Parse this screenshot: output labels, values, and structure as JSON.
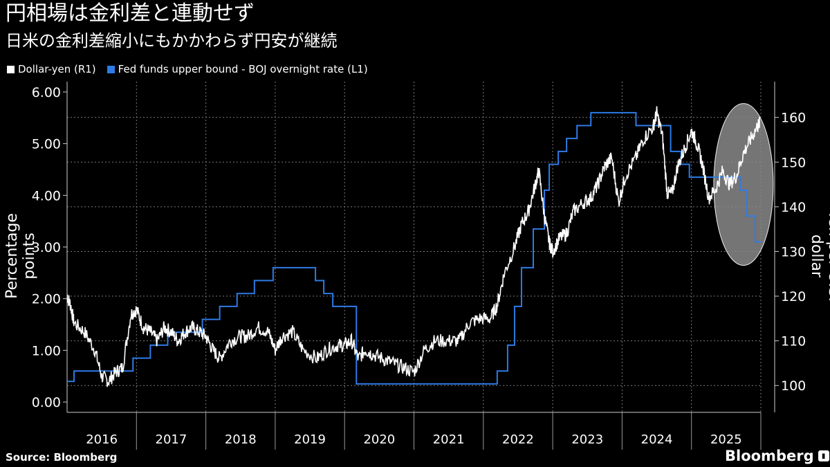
{
  "header": {
    "title": "円相場は金利差と連動せず",
    "subtitle": "日米の金利差縮小にもかかわらず円安が継続"
  },
  "legend": {
    "dollar_yen": "Dollar-yen (R1)",
    "fed_boj": "Fed funds upper bound - BOJ overnight rate (L1)"
  },
  "colors": {
    "dollar_yen": "#ffffff",
    "fed_boj": "#2e7be6",
    "grid": "#7a7a7a",
    "highlight": "#8a8a8a"
  },
  "footer": {
    "source": "Source:  Bloomberg",
    "brand": "Bloomberg"
  },
  "chart_data": {
    "type": "line",
    "x_range": [
      2016.0,
      2026.0
    ],
    "x_ticks": [
      "2016",
      "2017",
      "2018",
      "2019",
      "2020",
      "2021",
      "2022",
      "2023",
      "2024",
      "2025"
    ],
    "left_axis": {
      "label": "Percentage points",
      "range": [
        -0.2,
        6.2
      ],
      "ticks": [
        "0.00",
        "1.00",
        "2.00",
        "3.00",
        "4.00",
        "5.00",
        "6.00"
      ],
      "tick_values": [
        0,
        1,
        2,
        3,
        4,
        5,
        6
      ]
    },
    "right_axis": {
      "label": "Yen per U.S. dollar",
      "range": [
        94,
        168
      ],
      "ticks": [
        "100",
        "110",
        "120",
        "130",
        "140",
        "150",
        "160"
      ],
      "tick_values": [
        100,
        110,
        120,
        130,
        140,
        150,
        160
      ]
    },
    "series": [
      {
        "name": "Fed funds upper bound - BOJ overnight rate (L1)",
        "axis": "left",
        "step": true,
        "points": [
          [
            2016.0,
            0.4
          ],
          [
            2016.1,
            0.6
          ],
          [
            2016.95,
            0.85
          ],
          [
            2017.2,
            1.1
          ],
          [
            2017.45,
            1.35
          ],
          [
            2017.95,
            1.6
          ],
          [
            2018.2,
            1.85
          ],
          [
            2018.45,
            2.1
          ],
          [
            2018.7,
            2.35
          ],
          [
            2018.97,
            2.6
          ],
          [
            2019.58,
            2.35
          ],
          [
            2019.7,
            2.1
          ],
          [
            2019.83,
            1.85
          ],
          [
            2020.17,
            0.35
          ],
          [
            2022.2,
            0.6
          ],
          [
            2022.35,
            1.1
          ],
          [
            2022.45,
            1.85
          ],
          [
            2022.55,
            2.6
          ],
          [
            2022.72,
            3.35
          ],
          [
            2022.88,
            4.1
          ],
          [
            2022.95,
            4.6
          ],
          [
            2023.08,
            4.85
          ],
          [
            2023.2,
            5.1
          ],
          [
            2023.35,
            5.35
          ],
          [
            2023.55,
            5.6
          ],
          [
            2024.2,
            5.6
          ],
          [
            2024.2,
            5.35
          ],
          [
            2024.7,
            5.35
          ],
          [
            2024.7,
            4.85
          ],
          [
            2024.85,
            4.6
          ],
          [
            2024.97,
            4.35
          ],
          [
            2025.08,
            4.35
          ],
          [
            2025.05,
            4.35
          ],
          [
            2025.7,
            4.35
          ],
          [
            2025.7,
            4.1
          ],
          [
            2025.8,
            3.6
          ],
          [
            2025.92,
            3.1
          ],
          [
            2026.0,
            3.1
          ]
        ]
      },
      {
        "name": "Dollar-yen (R1)",
        "axis": "right",
        "points": [
          [
            2016.0,
            120
          ],
          [
            2016.05,
            118
          ],
          [
            2016.1,
            114
          ],
          [
            2016.25,
            112
          ],
          [
            2016.4,
            108
          ],
          [
            2016.5,
            102
          ],
          [
            2016.6,
            101
          ],
          [
            2016.7,
            103
          ],
          [
            2016.8,
            104
          ],
          [
            2016.92,
            116
          ],
          [
            2017.0,
            117
          ],
          [
            2017.1,
            113
          ],
          [
            2017.2,
            112
          ],
          [
            2017.3,
            110
          ],
          [
            2017.4,
            113
          ],
          [
            2017.5,
            112
          ],
          [
            2017.6,
            110
          ],
          [
            2017.7,
            112
          ],
          [
            2017.8,
            113
          ],
          [
            2017.9,
            112
          ],
          [
            2018.0,
            111
          ],
          [
            2018.1,
            108
          ],
          [
            2018.2,
            106
          ],
          [
            2018.35,
            110
          ],
          [
            2018.5,
            111
          ],
          [
            2018.6,
            111
          ],
          [
            2018.75,
            113
          ],
          [
            2018.9,
            112
          ],
          [
            2019.0,
            108
          ],
          [
            2019.1,
            111
          ],
          [
            2019.25,
            112
          ],
          [
            2019.4,
            108
          ],
          [
            2019.6,
            106
          ],
          [
            2019.75,
            108
          ],
          [
            2019.9,
            109
          ],
          [
            2020.0,
            109
          ],
          [
            2020.1,
            110
          ],
          [
            2020.2,
            106
          ],
          [
            2020.3,
            108
          ],
          [
            2020.4,
            107
          ],
          [
            2020.55,
            106
          ],
          [
            2020.7,
            105
          ],
          [
            2020.85,
            104
          ],
          [
            2021.0,
            103
          ],
          [
            2021.15,
            108
          ],
          [
            2021.3,
            110
          ],
          [
            2021.5,
            110
          ],
          [
            2021.65,
            110
          ],
          [
            2021.8,
            114
          ],
          [
            2021.95,
            115
          ],
          [
            2022.1,
            115
          ],
          [
            2022.2,
            118
          ],
          [
            2022.3,
            125
          ],
          [
            2022.45,
            131
          ],
          [
            2022.55,
            136
          ],
          [
            2022.65,
            139
          ],
          [
            2022.75,
            145
          ],
          [
            2022.8,
            148
          ],
          [
            2022.88,
            138
          ],
          [
            2022.95,
            132
          ],
          [
            2023.0,
            130
          ],
          [
            2023.1,
            133
          ],
          [
            2023.2,
            134
          ],
          [
            2023.3,
            139
          ],
          [
            2023.45,
            141
          ],
          [
            2023.55,
            142
          ],
          [
            2023.65,
            145
          ],
          [
            2023.75,
            149
          ],
          [
            2023.85,
            151
          ],
          [
            2023.95,
            141
          ],
          [
            2024.05,
            147
          ],
          [
            2024.2,
            151
          ],
          [
            2024.3,
            155
          ],
          [
            2024.45,
            158
          ],
          [
            2024.5,
            161
          ],
          [
            2024.58,
            156
          ],
          [
            2024.65,
            143
          ],
          [
            2024.72,
            143
          ],
          [
            2024.8,
            149
          ],
          [
            2024.9,
            153
          ],
          [
            2025.0,
            157
          ],
          [
            2025.08,
            154
          ],
          [
            2025.15,
            150
          ],
          [
            2025.25,
            142
          ],
          [
            2025.35,
            144
          ],
          [
            2025.45,
            148
          ],
          [
            2025.55,
            145
          ],
          [
            2025.65,
            147
          ],
          [
            2025.75,
            152
          ],
          [
            2025.85,
            155
          ],
          [
            2025.95,
            158
          ],
          [
            2026.0,
            159
          ]
        ]
      }
    ],
    "highlight": "ellipse around late-2025 divergence"
  }
}
